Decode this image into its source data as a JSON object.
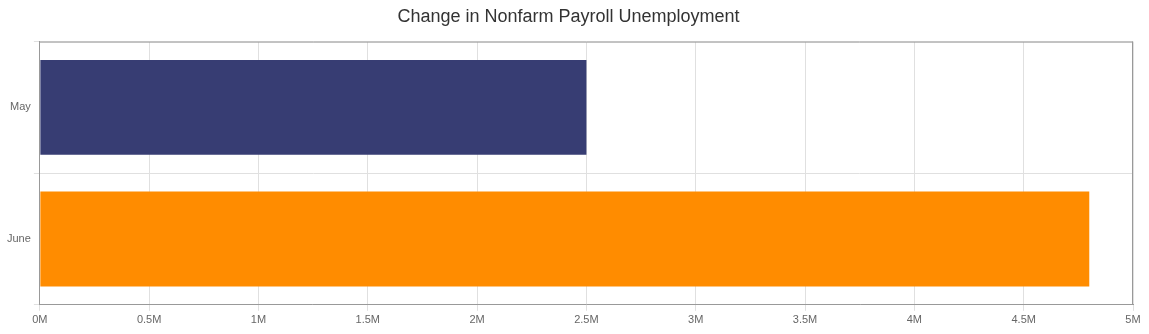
{
  "chart_data": {
    "type": "bar",
    "title": "Change in Nonfarm Payroll Unemployment",
    "orientation": "horizontal",
    "categories": [
      "May",
      "June"
    ],
    "values": [
      2500000,
      4800000
    ],
    "colors": [
      "#373d73",
      "#ff8c00"
    ],
    "xlim": [
      0,
      5000000
    ],
    "xticks": [
      {
        "value": 0,
        "label": "0M"
      },
      {
        "value": 500000,
        "label": "0.5M"
      },
      {
        "value": 1000000,
        "label": "1M"
      },
      {
        "value": 1500000,
        "label": "1.5M"
      },
      {
        "value": 2000000,
        "label": "2M"
      },
      {
        "value": 2500000,
        "label": "2.5M"
      },
      {
        "value": 3000000,
        "label": "3M"
      },
      {
        "value": 3500000,
        "label": "3.5M"
      },
      {
        "value": 4000000,
        "label": "4M"
      },
      {
        "value": 4500000,
        "label": "4.5M"
      },
      {
        "value": 5000000,
        "label": "5M"
      }
    ],
    "grid": true
  }
}
